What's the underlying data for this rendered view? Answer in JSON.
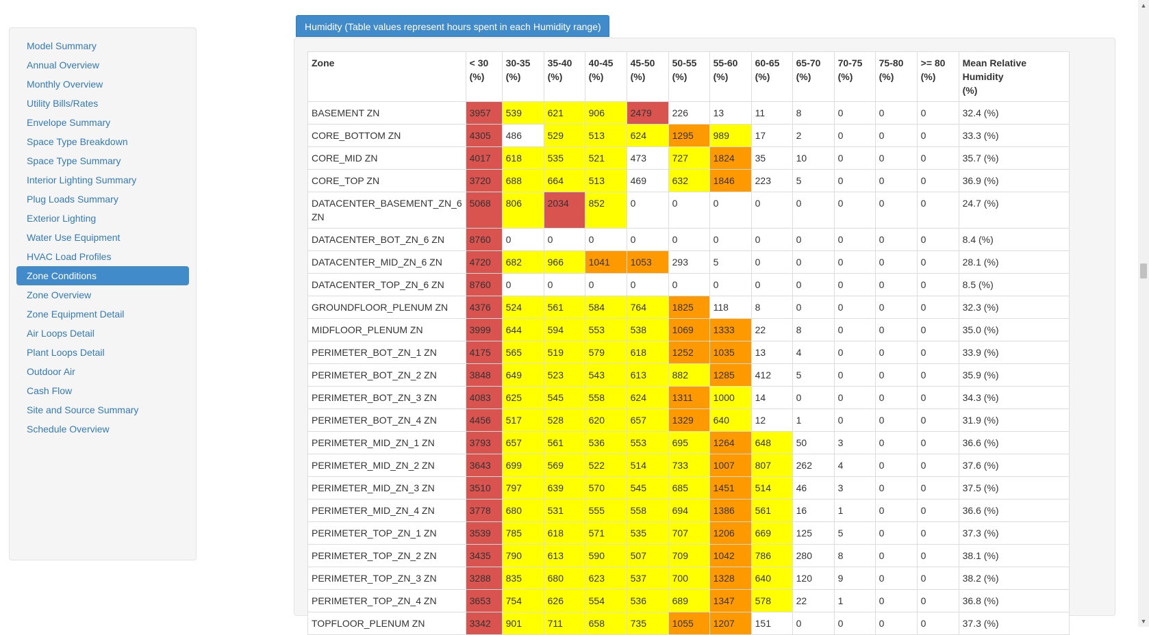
{
  "sidebar": {
    "items": [
      {
        "label": "Model Summary",
        "active": false
      },
      {
        "label": "Annual Overview",
        "active": false
      },
      {
        "label": "Monthly Overview",
        "active": false
      },
      {
        "label": "Utility Bills/Rates",
        "active": false
      },
      {
        "label": "Envelope Summary",
        "active": false
      },
      {
        "label": "Space Type Breakdown",
        "active": false
      },
      {
        "label": "Space Type Summary",
        "active": false
      },
      {
        "label": "Interior Lighting Summary",
        "active": false
      },
      {
        "label": "Plug Loads Summary",
        "active": false
      },
      {
        "label": "Exterior Lighting",
        "active": false
      },
      {
        "label": "Water Use Equipment",
        "active": false
      },
      {
        "label": "HVAC Load Profiles",
        "active": false
      },
      {
        "label": "Zone Conditions",
        "active": true
      },
      {
        "label": "Zone Overview",
        "active": false
      },
      {
        "label": "Zone Equipment Detail",
        "active": false
      },
      {
        "label": "Air Loops Detail",
        "active": false
      },
      {
        "label": "Plant Loops Detail",
        "active": false
      },
      {
        "label": "Outdoor Air",
        "active": false
      },
      {
        "label": "Cash Flow",
        "active": false
      },
      {
        "label": "Site and Source Summary",
        "active": false
      },
      {
        "label": "Schedule Overview",
        "active": false
      }
    ]
  },
  "panel": {
    "title": "Humidity (Table values represent hours spent in each Humidity range)"
  },
  "colors": {
    "red": "#d9534f",
    "orange": "#ff9900",
    "yellow": "#ffff00",
    "link": "#337ab7",
    "active": "#428bca"
  },
  "table": {
    "headers": [
      {
        "top": "Zone",
        "bottom": ""
      },
      {
        "top": "< 30",
        "bottom": "(%)"
      },
      {
        "top": "30-35",
        "bottom": "(%)"
      },
      {
        "top": "35-40",
        "bottom": "(%)"
      },
      {
        "top": "40-45",
        "bottom": "(%)"
      },
      {
        "top": "45-50",
        "bottom": "(%)"
      },
      {
        "top": "50-55",
        "bottom": "(%)"
      },
      {
        "top": "55-60",
        "bottom": "(%)"
      },
      {
        "top": "60-65",
        "bottom": "(%)"
      },
      {
        "top": "65-70",
        "bottom": "(%)"
      },
      {
        "top": "70-75",
        "bottom": "(%)"
      },
      {
        "top": "75-80",
        "bottom": "(%)"
      },
      {
        "top": ">= 80",
        "bottom": "(%)"
      },
      {
        "top": "Mean Relative Humidity",
        "bottom": "(%)"
      }
    ],
    "rows": [
      {
        "zone": "BASEMENT ZN",
        "values": [
          "3957",
          "539",
          "621",
          "906",
          "2479",
          "226",
          "13",
          "11",
          "8",
          "0",
          "0",
          "0"
        ],
        "colors": [
          "r",
          "y",
          "y",
          "y",
          "r",
          "",
          "",
          "",
          "",
          "",
          "",
          ""
        ],
        "mean": "32.4 (%)"
      },
      {
        "zone": "CORE_BOTTOM ZN",
        "values": [
          "4305",
          "486",
          "529",
          "513",
          "624",
          "1295",
          "989",
          "17",
          "2",
          "0",
          "0",
          "0"
        ],
        "colors": [
          "r",
          "",
          "y",
          "y",
          "y",
          "o",
          "y",
          "",
          "",
          "",
          "",
          ""
        ],
        "mean": "33.3 (%)"
      },
      {
        "zone": "CORE_MID ZN",
        "values": [
          "4017",
          "618",
          "535",
          "521",
          "473",
          "727",
          "1824",
          "35",
          "10",
          "0",
          "0",
          "0"
        ],
        "colors": [
          "r",
          "y",
          "y",
          "y",
          "",
          "y",
          "o",
          "",
          "",
          "",
          "",
          ""
        ],
        "mean": "35.7 (%)"
      },
      {
        "zone": "CORE_TOP ZN",
        "values": [
          "3720",
          "688",
          "664",
          "513",
          "469",
          "632",
          "1846",
          "223",
          "5",
          "0",
          "0",
          "0"
        ],
        "colors": [
          "r",
          "y",
          "y",
          "y",
          "",
          "y",
          "o",
          "",
          "",
          "",
          "",
          ""
        ],
        "mean": "36.9 (%)"
      },
      {
        "zone": "DATACENTER_BASEMENT_ZN_6 ZN",
        "values": [
          "5068",
          "806",
          "2034",
          "852",
          "0",
          "0",
          "0",
          "0",
          "0",
          "0",
          "0",
          "0"
        ],
        "colors": [
          "r",
          "y",
          "r",
          "y",
          "",
          "",
          "",
          "",
          "",
          "",
          "",
          ""
        ],
        "mean": "24.7 (%)"
      },
      {
        "zone": "DATACENTER_BOT_ZN_6 ZN",
        "values": [
          "8760",
          "0",
          "0",
          "0",
          "0",
          "0",
          "0",
          "0",
          "0",
          "0",
          "0",
          "0"
        ],
        "colors": [
          "r",
          "",
          "",
          "",
          "",
          "",
          "",
          "",
          "",
          "",
          "",
          ""
        ],
        "mean": "8.4 (%)"
      },
      {
        "zone": "DATACENTER_MID_ZN_6 ZN",
        "values": [
          "4720",
          "682",
          "966",
          "1041",
          "1053",
          "293",
          "5",
          "0",
          "0",
          "0",
          "0",
          "0"
        ],
        "colors": [
          "r",
          "y",
          "y",
          "o",
          "o",
          "",
          "",
          "",
          "",
          "",
          "",
          ""
        ],
        "mean": "28.1 (%)"
      },
      {
        "zone": "DATACENTER_TOP_ZN_6 ZN",
        "values": [
          "8760",
          "0",
          "0",
          "0",
          "0",
          "0",
          "0",
          "0",
          "0",
          "0",
          "0",
          "0"
        ],
        "colors": [
          "r",
          "",
          "",
          "",
          "",
          "",
          "",
          "",
          "",
          "",
          "",
          ""
        ],
        "mean": "8.5 (%)"
      },
      {
        "zone": "GROUNDFLOOR_PLENUM ZN",
        "values": [
          "4376",
          "524",
          "561",
          "584",
          "764",
          "1825",
          "118",
          "8",
          "0",
          "0",
          "0",
          "0"
        ],
        "colors": [
          "r",
          "y",
          "y",
          "y",
          "y",
          "o",
          "",
          "",
          "",
          "",
          "",
          ""
        ],
        "mean": "32.3 (%)"
      },
      {
        "zone": "MIDFLOOR_PLENUM ZN",
        "values": [
          "3999",
          "644",
          "594",
          "553",
          "538",
          "1069",
          "1333",
          "22",
          "8",
          "0",
          "0",
          "0"
        ],
        "colors": [
          "r",
          "y",
          "y",
          "y",
          "y",
          "o",
          "o",
          "",
          "",
          "",
          "",
          ""
        ],
        "mean": "35.0 (%)"
      },
      {
        "zone": "PERIMETER_BOT_ZN_1 ZN",
        "values": [
          "4175",
          "565",
          "519",
          "579",
          "618",
          "1252",
          "1035",
          "13",
          "4",
          "0",
          "0",
          "0"
        ],
        "colors": [
          "r",
          "y",
          "y",
          "y",
          "y",
          "o",
          "o",
          "",
          "",
          "",
          "",
          ""
        ],
        "mean": "33.9 (%)"
      },
      {
        "zone": "PERIMETER_BOT_ZN_2 ZN",
        "values": [
          "3848",
          "649",
          "523",
          "543",
          "613",
          "882",
          "1285",
          "412",
          "5",
          "0",
          "0",
          "0"
        ],
        "colors": [
          "r",
          "y",
          "y",
          "y",
          "y",
          "y",
          "o",
          "",
          "",
          "",
          "",
          ""
        ],
        "mean": "35.9 (%)"
      },
      {
        "zone": "PERIMETER_BOT_ZN_3 ZN",
        "values": [
          "4083",
          "625",
          "545",
          "558",
          "624",
          "1311",
          "1000",
          "14",
          "0",
          "0",
          "0",
          "0"
        ],
        "colors": [
          "r",
          "y",
          "y",
          "y",
          "y",
          "o",
          "y",
          "",
          "",
          "",
          "",
          ""
        ],
        "mean": "34.3 (%)"
      },
      {
        "zone": "PERIMETER_BOT_ZN_4 ZN",
        "values": [
          "4456",
          "517",
          "528",
          "620",
          "657",
          "1329",
          "640",
          "12",
          "1",
          "0",
          "0",
          "0"
        ],
        "colors": [
          "r",
          "y",
          "y",
          "y",
          "y",
          "o",
          "y",
          "",
          "",
          "",
          "",
          ""
        ],
        "mean": "31.9 (%)"
      },
      {
        "zone": "PERIMETER_MID_ZN_1 ZN",
        "values": [
          "3793",
          "657",
          "561",
          "536",
          "553",
          "695",
          "1264",
          "648",
          "50",
          "3",
          "0",
          "0"
        ],
        "colors": [
          "r",
          "y",
          "y",
          "y",
          "y",
          "y",
          "o",
          "y",
          "",
          "",
          "",
          ""
        ],
        "mean": "36.6 (%)"
      },
      {
        "zone": "PERIMETER_MID_ZN_2 ZN",
        "values": [
          "3643",
          "699",
          "569",
          "522",
          "514",
          "733",
          "1007",
          "807",
          "262",
          "4",
          "0",
          "0"
        ],
        "colors": [
          "r",
          "y",
          "y",
          "y",
          "y",
          "y",
          "o",
          "y",
          "",
          "",
          "",
          ""
        ],
        "mean": "37.6 (%)"
      },
      {
        "zone": "PERIMETER_MID_ZN_3 ZN",
        "values": [
          "3510",
          "797",
          "639",
          "570",
          "545",
          "685",
          "1451",
          "514",
          "46",
          "3",
          "0",
          "0"
        ],
        "colors": [
          "r",
          "y",
          "y",
          "y",
          "y",
          "y",
          "o",
          "y",
          "",
          "",
          "",
          ""
        ],
        "mean": "37.5 (%)"
      },
      {
        "zone": "PERIMETER_MID_ZN_4 ZN",
        "values": [
          "3778",
          "680",
          "531",
          "555",
          "558",
          "694",
          "1386",
          "561",
          "16",
          "1",
          "0",
          "0"
        ],
        "colors": [
          "r",
          "y",
          "y",
          "y",
          "y",
          "y",
          "o",
          "y",
          "",
          "",
          "",
          ""
        ],
        "mean": "36.6 (%)"
      },
      {
        "zone": "PERIMETER_TOP_ZN_1 ZN",
        "values": [
          "3539",
          "785",
          "618",
          "571",
          "535",
          "707",
          "1206",
          "669",
          "125",
          "5",
          "0",
          "0"
        ],
        "colors": [
          "r",
          "y",
          "y",
          "y",
          "y",
          "y",
          "o",
          "y",
          "",
          "",
          "",
          ""
        ],
        "mean": "37.3 (%)"
      },
      {
        "zone": "PERIMETER_TOP_ZN_2 ZN",
        "values": [
          "3435",
          "790",
          "613",
          "590",
          "507",
          "709",
          "1042",
          "786",
          "280",
          "8",
          "0",
          "0"
        ],
        "colors": [
          "r",
          "y",
          "y",
          "y",
          "y",
          "y",
          "o",
          "y",
          "",
          "",
          "",
          ""
        ],
        "mean": "38.1 (%)"
      },
      {
        "zone": "PERIMETER_TOP_ZN_3 ZN",
        "values": [
          "3288",
          "835",
          "680",
          "623",
          "537",
          "700",
          "1328",
          "640",
          "120",
          "9",
          "0",
          "0"
        ],
        "colors": [
          "r",
          "y",
          "y",
          "y",
          "y",
          "y",
          "o",
          "y",
          "",
          "",
          "",
          ""
        ],
        "mean": "38.2 (%)"
      },
      {
        "zone": "PERIMETER_TOP_ZN_4 ZN",
        "values": [
          "3653",
          "754",
          "626",
          "554",
          "536",
          "689",
          "1347",
          "578",
          "22",
          "1",
          "0",
          "0"
        ],
        "colors": [
          "r",
          "y",
          "y",
          "y",
          "y",
          "y",
          "o",
          "y",
          "",
          "",
          "",
          ""
        ],
        "mean": "36.8 (%)"
      },
      {
        "zone": "TOPFLOOR_PLENUM ZN",
        "values": [
          "3342",
          "901",
          "711",
          "658",
          "735",
          "1055",
          "1207",
          "151",
          "0",
          "0",
          "0",
          "0"
        ],
        "colors": [
          "r",
          "y",
          "y",
          "y",
          "y",
          "o",
          "o",
          "",
          "",
          "",
          "",
          ""
        ],
        "mean": "37.3 (%)"
      }
    ]
  },
  "scrollbar": {
    "up_icon": "▲",
    "down_icon": "▼"
  }
}
